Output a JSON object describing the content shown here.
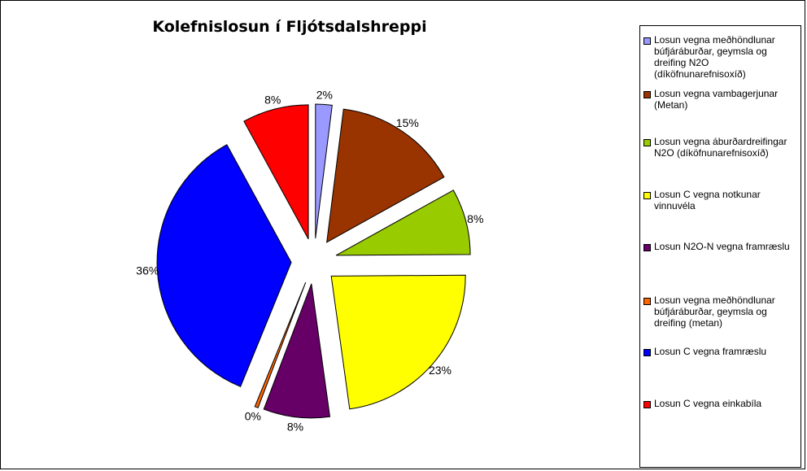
{
  "chart_data": {
    "type": "pie",
    "title": "Kolefnislosun í Fljótsdalshreppi",
    "legend_position": "right",
    "slices": [
      {
        "name": "Losun vegna meðhöndlunar búfjáráburðar, geymsla og dreifing N2O (díköfnunarefnisoxíð)",
        "value": 2,
        "label": "2%",
        "color": "#9999FF"
      },
      {
        "name": "Losun vegna vambagerjunar (Metan)",
        "value": 15,
        "label": "15%",
        "color": "#993300"
      },
      {
        "name": "Losun vegna áburðardreifingar N2O (díköfnunarefnisoxíð)",
        "value": 8,
        "label": "8%",
        "color": "#99CC00"
      },
      {
        "name": "Losun C vegna notkunar vinnuvéla",
        "value": 23,
        "label": "23%",
        "color": "#FFFF00"
      },
      {
        "name": "Losun N2O-N vegna framræslu",
        "value": 8,
        "label": "8%",
        "color": "#660066"
      },
      {
        "name": "Losun vegna meðhöndlunar búfjáráburðar, geymsla og dreifing (metan)",
        "value": 0.4,
        "label": "0%",
        "color": "#FF6600"
      },
      {
        "name": "Losun C vegna framræslu",
        "value": 36,
        "label": "36%",
        "color": "#0000FF"
      },
      {
        "name": "Losun C vegna einkabíla",
        "value": 8,
        "label": "8%",
        "color": "#FF0000"
      }
    ]
  }
}
